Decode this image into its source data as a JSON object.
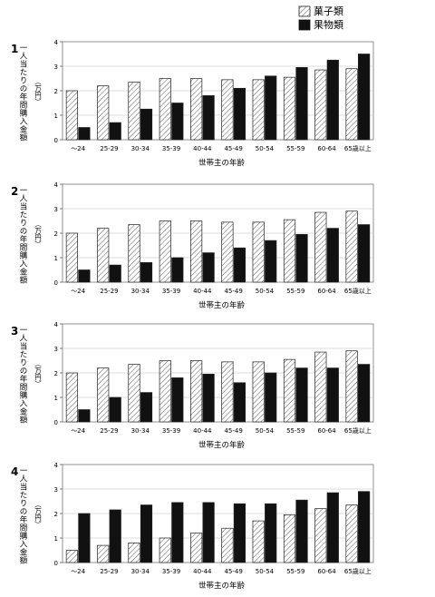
{
  "legend": {
    "items": [
      {
        "label": "菓子類",
        "pattern": "hatch"
      },
      {
        "label": "果物類",
        "pattern": "solid"
      }
    ]
  },
  "chart_data": [
    {
      "type": "bar",
      "panel_number": "1",
      "ylabel": "一人当たりの年間購入金額",
      "yunit": "（万円）",
      "xlabel": "世帯主の年齢",
      "categories": [
        "〜24",
        "25-29",
        "30-34",
        "35-39",
        "40-44",
        "45-49",
        "50-54",
        "55-59",
        "60-64",
        "65歳以上"
      ],
      "ylim": [
        0,
        4
      ],
      "yticks": [
        "0",
        "1",
        "2",
        "3",
        "4"
      ],
      "grid": true,
      "series": [
        {
          "name": "菓子類",
          "values": [
            2.0,
            2.2,
            2.35,
            2.5,
            2.5,
            2.45,
            2.45,
            2.55,
            2.85,
            2.9
          ]
        },
        {
          "name": "果物類",
          "values": [
            0.5,
            0.7,
            1.25,
            1.5,
            1.8,
            2.1,
            2.6,
            2.95,
            3.25,
            3.5
          ]
        }
      ]
    },
    {
      "type": "bar",
      "panel_number": "2",
      "ylabel": "一人当たりの年間購入金額",
      "yunit": "（万円）",
      "xlabel": "世帯主の年齢",
      "categories": [
        "〜24",
        "25-29",
        "30-34",
        "35-39",
        "40-44",
        "45-49",
        "50-54",
        "55-59",
        "60-64",
        "65歳以上"
      ],
      "ylim": [
        0,
        4
      ],
      "yticks": [
        "0",
        "1",
        "2",
        "3",
        "4"
      ],
      "grid": true,
      "series": [
        {
          "name": "菓子類",
          "values": [
            2.0,
            2.2,
            2.35,
            2.5,
            2.5,
            2.45,
            2.45,
            2.55,
            2.85,
            2.9
          ]
        },
        {
          "name": "果物類",
          "values": [
            0.5,
            0.7,
            0.8,
            1.0,
            1.2,
            1.4,
            1.7,
            1.95,
            2.2,
            2.35
          ]
        }
      ]
    },
    {
      "type": "bar",
      "panel_number": "3",
      "ylabel": "一人当たりの年間購入金額",
      "yunit": "（万円）",
      "xlabel": "世帯主の年齢",
      "categories": [
        "〜24",
        "25-29",
        "30-34",
        "35-39",
        "40-44",
        "45-49",
        "50-54",
        "55-59",
        "60-64",
        "65歳以上"
      ],
      "ylim": [
        0,
        4
      ],
      "yticks": [
        "0",
        "1",
        "2",
        "3",
        "4"
      ],
      "grid": true,
      "series": [
        {
          "name": "菓子類",
          "values": [
            2.0,
            2.2,
            2.35,
            2.5,
            2.5,
            2.45,
            2.45,
            2.55,
            2.85,
            2.9
          ]
        },
        {
          "name": "果物類",
          "values": [
            0.5,
            1.0,
            1.2,
            1.8,
            1.95,
            1.6,
            2.0,
            2.2,
            2.2,
            2.35
          ]
        }
      ]
    },
    {
      "type": "bar",
      "panel_number": "4",
      "ylabel": "一人当たりの年間購入金額",
      "yunit": "（万円）",
      "xlabel": "世帯主の年齢",
      "categories": [
        "〜24",
        "25-29",
        "30-34",
        "35-39",
        "40-44",
        "45-49",
        "50-54",
        "55-59",
        "60-64",
        "65歳以上"
      ],
      "ylim": [
        0,
        4
      ],
      "yticks": [
        "0",
        "1",
        "2",
        "3",
        "4"
      ],
      "grid": true,
      "series": [
        {
          "name": "菓子類",
          "values": [
            0.5,
            0.7,
            0.8,
            1.0,
            1.2,
            1.4,
            1.7,
            1.95,
            2.2,
            2.35
          ]
        },
        {
          "name": "果物類",
          "values": [
            2.0,
            2.15,
            2.35,
            2.45,
            2.45,
            2.4,
            2.4,
            2.55,
            2.85,
            2.9
          ]
        }
      ]
    }
  ]
}
